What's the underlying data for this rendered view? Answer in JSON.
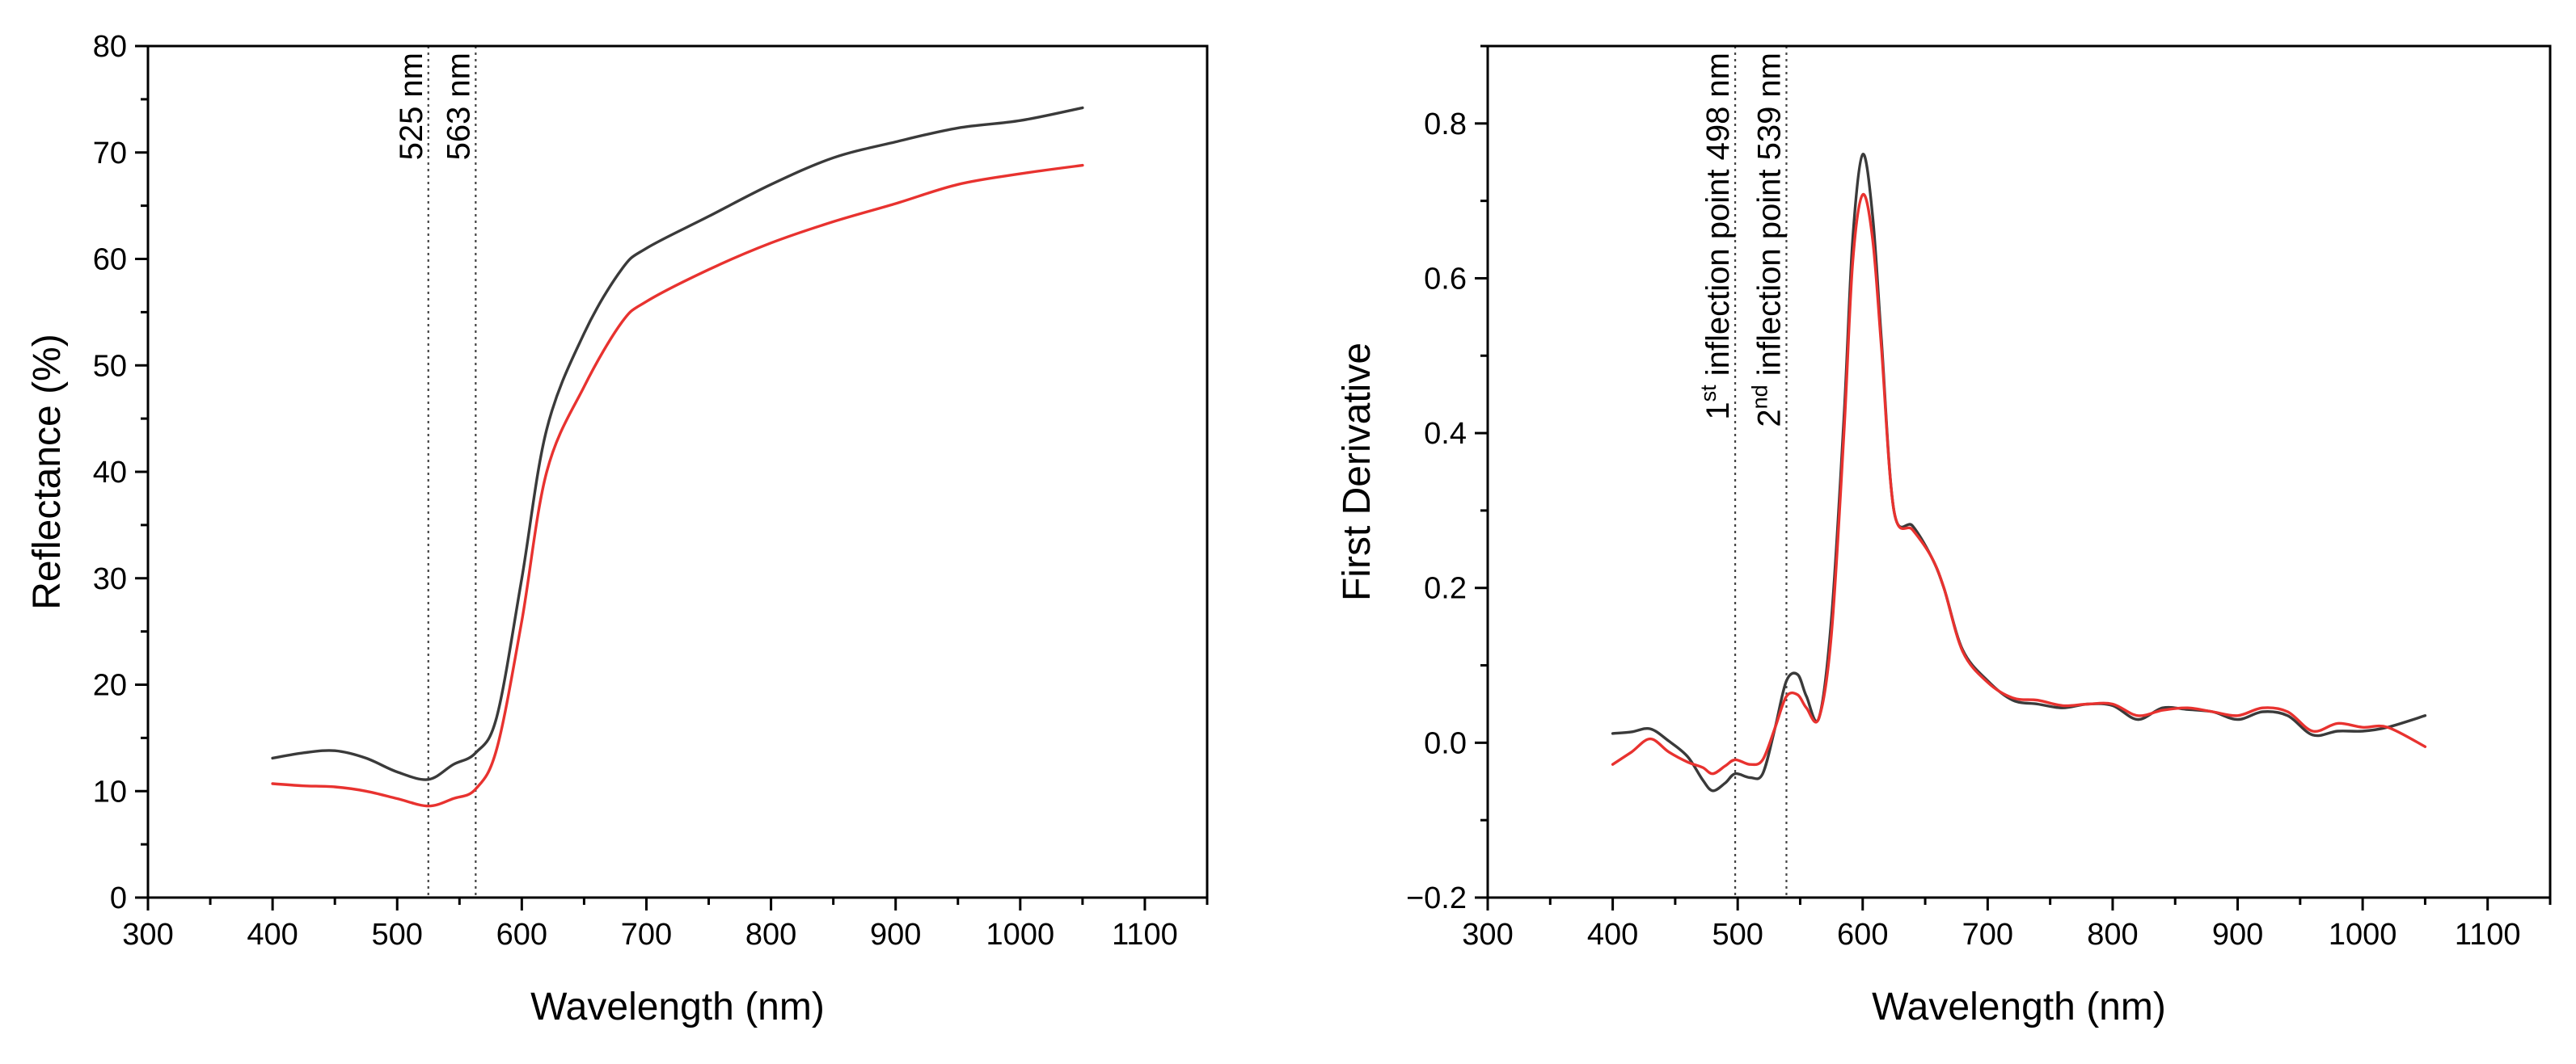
{
  "colors": {
    "series_black": "#3a3a3a",
    "series_red": "#e8322f"
  },
  "chart_data": [
    {
      "type": "line",
      "xlabel": "Wavelength (nm)",
      "ylabel": "Reflectance (%)",
      "xlim": [
        300,
        1150
      ],
      "ylim": [
        0,
        80
      ],
      "xticks": [
        300,
        400,
        500,
        600,
        700,
        800,
        900,
        1000,
        1100
      ],
      "yticks": [
        0,
        10,
        20,
        30,
        40,
        50,
        60,
        70,
        80
      ],
      "xtick_labels": [
        "300",
        "400",
        "500",
        "600",
        "700",
        "800",
        "900",
        "1000",
        "1100"
      ],
      "ytick_labels": [
        "0",
        "10",
        "20",
        "30",
        "40",
        "50",
        "60",
        "70",
        "80"
      ],
      "vlines": [
        {
          "x": 525,
          "label": "525 nm"
        },
        {
          "x": 563,
          "label": "563 nm"
        }
      ],
      "series": [
        {
          "name": "black",
          "color": "#3a3a3a",
          "x": [
            400,
            425,
            450,
            475,
            500,
            525,
            545,
            563,
            580,
            600,
            620,
            650,
            680,
            700,
            750,
            800,
            850,
            900,
            950,
            1000,
            1050
          ],
          "y": [
            13.1,
            13.6,
            13.8,
            13.1,
            11.8,
            11.1,
            12.5,
            13.6,
            17.0,
            30.0,
            44.0,
            53.0,
            59.0,
            61.0,
            64.0,
            67.0,
            69.5,
            71.0,
            72.3,
            73.0,
            74.2
          ]
        },
        {
          "name": "red",
          "color": "#e8322f",
          "x": [
            400,
            425,
            450,
            475,
            500,
            525,
            545,
            563,
            580,
            600,
            620,
            650,
            680,
            700,
            750,
            800,
            850,
            900,
            950,
            1000,
            1050
          ],
          "y": [
            10.7,
            10.5,
            10.4,
            10.0,
            9.3,
            8.6,
            9.3,
            10.2,
            14.0,
            26.0,
            40.0,
            48.0,
            54.0,
            56.0,
            59.0,
            61.5,
            63.5,
            65.2,
            67.0,
            68.0,
            68.8
          ]
        }
      ]
    },
    {
      "type": "line",
      "xlabel": "Wavelength (nm)",
      "ylabel": "First Derivative",
      "xlim": [
        300,
        1150
      ],
      "ylim": [
        -0.2,
        0.9
      ],
      "xticks": [
        300,
        400,
        500,
        600,
        700,
        800,
        900,
        1000,
        1100
      ],
      "yticks": [
        -0.2,
        0.0,
        0.2,
        0.4,
        0.6,
        0.8
      ],
      "xtick_labels": [
        "300",
        "400",
        "500",
        "600",
        "700",
        "800",
        "900",
        "1000",
        "1100"
      ],
      "ytick_labels": [
        "−0.2",
        "0.0",
        "0.2",
        "0.4",
        "0.6",
        "0.8"
      ],
      "vlines": [
        {
          "x": 498,
          "pre": "1",
          "sup": "st",
          "post": " inflection point 498 nm"
        },
        {
          "x": 539,
          "pre": "2",
          "sup": "nd",
          "post": " inflection point 539 nm"
        }
      ],
      "series": [
        {
          "name": "black",
          "color": "#3a3a3a",
          "x": [
            400,
            415,
            430,
            445,
            460,
            472,
            480,
            490,
            498,
            510,
            520,
            530,
            539,
            548,
            555,
            565,
            575,
            585,
            592,
            600,
            608,
            615,
            625,
            640,
            655,
            665,
            680,
            700,
            720,
            740,
            760,
            780,
            800,
            820,
            840,
            860,
            880,
            900,
            920,
            940,
            960,
            980,
            1000,
            1020,
            1050
          ],
          "y": [
            0.012,
            0.014,
            0.018,
            0.002,
            -0.018,
            -0.048,
            -0.062,
            -0.052,
            -0.04,
            -0.045,
            -0.04,
            0.02,
            0.08,
            0.088,
            0.06,
            0.032,
            0.16,
            0.42,
            0.65,
            0.76,
            0.68,
            0.52,
            0.3,
            0.28,
            0.24,
            0.2,
            0.12,
            0.08,
            0.055,
            0.05,
            0.045,
            0.05,
            0.048,
            0.03,
            0.045,
            0.043,
            0.04,
            0.03,
            0.04,
            0.035,
            0.01,
            0.015,
            0.015,
            0.02,
            0.035
          ]
        },
        {
          "name": "red",
          "color": "#e8322f",
          "x": [
            400,
            415,
            430,
            445,
            460,
            472,
            480,
            490,
            498,
            510,
            520,
            530,
            539,
            548,
            555,
            565,
            575,
            585,
            592,
            600,
            608,
            615,
            625,
            640,
            655,
            665,
            680,
            700,
            720,
            740,
            760,
            780,
            800,
            820,
            840,
            860,
            880,
            900,
            920,
            940,
            960,
            980,
            1000,
            1020,
            1050
          ],
          "y": [
            -0.028,
            -0.012,
            0.005,
            -0.012,
            -0.025,
            -0.032,
            -0.04,
            -0.03,
            -0.022,
            -0.028,
            -0.022,
            0.02,
            0.06,
            0.062,
            0.045,
            0.032,
            0.14,
            0.4,
            0.62,
            0.708,
            0.65,
            0.51,
            0.3,
            0.275,
            0.24,
            0.2,
            0.118,
            0.078,
            0.058,
            0.055,
            0.048,
            0.05,
            0.05,
            0.035,
            0.042,
            0.045,
            0.04,
            0.035,
            0.045,
            0.04,
            0.015,
            0.025,
            0.02,
            0.02,
            -0.005
          ]
        }
      ]
    }
  ]
}
